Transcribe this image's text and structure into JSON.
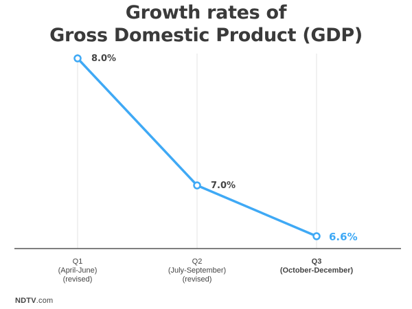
{
  "header": {
    "title_line1": "Growth rates of",
    "title_line2": "Gross Domestic Product (GDP)"
  },
  "source": {
    "logo_bold": "NDTV",
    "logo_suffix": ".com"
  },
  "colors": {
    "line": "#3fa9f5",
    "highlight": "#3fa9f5",
    "axis": "#333333",
    "gridline": "#e3e3e3",
    "text": "#444444"
  },
  "chart_data": {
    "type": "line",
    "title": "Growth rates of Gross Domestic Product (GDP)",
    "xlabel": "",
    "ylabel": "",
    "ylim": [
      6.0,
      8.0
    ],
    "grid": "vertical",
    "categories": [
      {
        "lines": [
          "Q1",
          "(April-June)",
          "(revised)"
        ],
        "bold": false
      },
      {
        "lines": [
          "Q2",
          "(July-September)",
          "(revised)"
        ],
        "bold": false
      },
      {
        "lines": [
          "Q3",
          "(October-December)"
        ],
        "bold": true
      }
    ],
    "values": [
      8.0,
      7.0,
      6.6
    ],
    "labels": [
      "8.0%",
      "7.0%",
      "6.6%"
    ],
    "highlight_index": 2
  }
}
